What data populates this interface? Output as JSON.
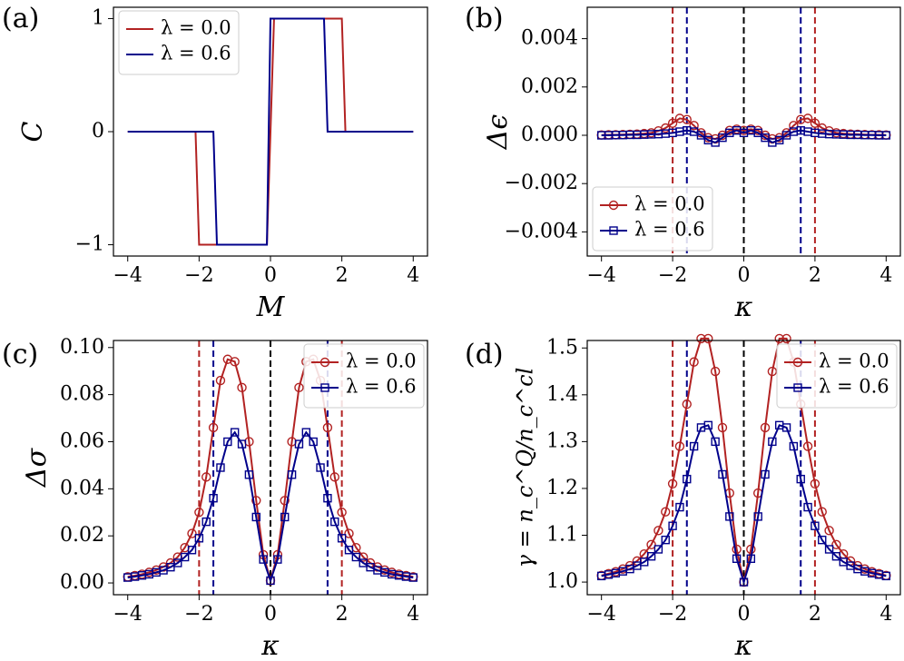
{
  "chart_data": [
    {
      "type": "line",
      "panel_label": "(a)",
      "xlabel": "M",
      "ylabel": "C",
      "xlim": [
        -4.4,
        4.4
      ],
      "ylim": [
        -1.1,
        1.1
      ],
      "xticks": [
        {
          "value": -4,
          "label": "−4"
        },
        {
          "value": -2,
          "label": "−2"
        },
        0,
        2,
        4
      ],
      "yticks": [
        {
          "value": -1,
          "label": "−1"
        },
        0,
        1
      ],
      "legend": "upper left",
      "series": [
        {
          "name": "λ = 0.0",
          "color": "#b22222",
          "x": [
            -4,
            -2.1,
            -2.0,
            -0.1,
            0.1,
            2.0,
            2.1,
            4
          ],
          "values": [
            0,
            0,
            -1,
            -1,
            1,
            1,
            0,
            0
          ]
        },
        {
          "name": "λ = 0.6",
          "color": "#00008b",
          "x": [
            -4,
            -1.6,
            -1.5,
            -0.1,
            0.0,
            1.5,
            1.6,
            4
          ],
          "values": [
            0,
            0,
            -1,
            -1,
            1,
            1,
            0,
            0
          ]
        }
      ]
    },
    {
      "type": "line",
      "panel_label": "(b)",
      "xlabel": "κ",
      "ylabel": "Δϵ",
      "xlim": [
        -4.4,
        4.4
      ],
      "ylim": [
        -0.005,
        0.0053
      ],
      "xticks": [
        {
          "value": -4,
          "label": "−4"
        },
        {
          "value": -2,
          "label": "−2"
        },
        0,
        2,
        4
      ],
      "yticks": [
        {
          "value": -0.004,
          "label": "−0.004"
        },
        {
          "value": -0.002,
          "label": "−0.002"
        },
        {
          "value": 0,
          "label": "0.000"
        },
        0.002,
        0.004
      ],
      "legend": "lower left",
      "vlines": [
        {
          "x": -2,
          "color": "#b22222"
        },
        {
          "x": -1.6,
          "color": "#00008b"
        },
        {
          "x": 0,
          "color": "#000000"
        },
        {
          "x": 1.6,
          "color": "#00008b"
        },
        {
          "x": 2,
          "color": "#b22222"
        }
      ],
      "x": [
        -4,
        -3.8,
        -3.6,
        -3.4,
        -3.2,
        -3,
        -2.8,
        -2.6,
        -2.4,
        -2.2,
        -2,
        -1.8,
        -1.6,
        -1.4,
        -1.2,
        -1,
        -0.8,
        -0.6,
        -0.4,
        -0.2,
        0,
        0.2,
        0.4,
        0.6,
        0.8,
        1,
        1.2,
        1.4,
        1.6,
        1.8,
        2,
        2.2,
        2.4,
        2.6,
        2.8,
        3,
        3.2,
        3.4,
        3.6,
        3.8,
        4
      ],
      "series": [
        {
          "name": "λ = 0.0",
          "color": "#b22222",
          "marker": "o",
          "values": [
            1e-05,
            2e-05,
            2e-05,
            3e-05,
            4e-05,
            5e-05,
            7e-05,
            0.0001,
            0.00018,
            0.0003,
            0.0005,
            0.0007,
            0.00065,
            0.0004,
            0.0001,
            -0.0001,
            -0.00015,
            0.0,
            0.0002,
            0.00025,
            0.0002,
            0.00025,
            0.0002,
            0.0,
            -0.00015,
            -0.0001,
            0.0001,
            0.0004,
            0.00065,
            0.0007,
            0.0005,
            0.0003,
            0.00018,
            0.0001,
            7e-05,
            5e-05,
            4e-05,
            3e-05,
            2e-05,
            2e-05,
            1e-05
          ]
        },
        {
          "name": "λ = 0.6",
          "color": "#00008b",
          "marker": "s",
          "values": [
            0.0,
            0.0,
            1e-05,
            1e-05,
            2e-05,
            2e-05,
            3e-05,
            4e-05,
            5e-05,
            7e-05,
            0.0001,
            0.00015,
            0.0002,
            0.00015,
            0.0,
            -0.0002,
            -0.0003,
            -0.0001,
            0.0001,
            0.0002,
            0.0001,
            0.0002,
            0.0001,
            -0.0001,
            -0.0003,
            -0.0002,
            0.0,
            0.00015,
            0.0002,
            0.00015,
            0.0001,
            7e-05,
            5e-05,
            4e-05,
            3e-05,
            2e-05,
            2e-05,
            1e-05,
            1e-05,
            0.0,
            0.0
          ]
        }
      ]
    },
    {
      "type": "line",
      "panel_label": "(c)",
      "xlabel": "κ",
      "ylabel": "Δσ",
      "xlim": [
        -4.4,
        4.4
      ],
      "ylim": [
        -0.005,
        0.103
      ],
      "xticks": [
        {
          "value": -4,
          "label": "−4"
        },
        {
          "value": -2,
          "label": "−2"
        },
        0,
        2,
        4
      ],
      "yticks": [
        {
          "value": 0,
          "label": "0.00"
        },
        0.02,
        0.04,
        0.06,
        0.08,
        {
          "value": 0.1,
          "label": "0.10"
        }
      ],
      "legend": "upper right",
      "vlines": [
        {
          "x": -2,
          "color": "#b22222"
        },
        {
          "x": -1.6,
          "color": "#00008b"
        },
        {
          "x": 0,
          "color": "#000000"
        },
        {
          "x": 1.6,
          "color": "#00008b"
        },
        {
          "x": 2,
          "color": "#b22222"
        }
      ],
      "x": [
        -4,
        -3.8,
        -3.6,
        -3.4,
        -3.2,
        -3,
        -2.8,
        -2.6,
        -2.4,
        -2.2,
        -2,
        -1.8,
        -1.6,
        -1.4,
        -1.2,
        -1,
        -0.8,
        -0.6,
        -0.4,
        -0.2,
        0,
        0.2,
        0.4,
        0.6,
        0.8,
        1,
        1.2,
        1.4,
        1.6,
        1.8,
        2,
        2.2,
        2.4,
        2.6,
        2.8,
        3,
        3.2,
        3.4,
        3.6,
        3.8,
        4
      ],
      "series": [
        {
          "name": "λ = 0.0",
          "color": "#b22222",
          "marker": "o",
          "values": [
            0.0026,
            0.0031,
            0.0037,
            0.0045,
            0.0055,
            0.0068,
            0.0085,
            0.011,
            0.015,
            0.021,
            0.03,
            0.045,
            0.066,
            0.086,
            0.095,
            0.094,
            0.083,
            0.06,
            0.035,
            0.012,
            0.001,
            0.012,
            0.035,
            0.06,
            0.083,
            0.094,
            0.095,
            0.086,
            0.066,
            0.045,
            0.03,
            0.021,
            0.015,
            0.011,
            0.0085,
            0.0068,
            0.0055,
            0.0045,
            0.0037,
            0.0031,
            0.0026
          ]
        },
        {
          "name": "λ = 0.6",
          "color": "#00008b",
          "marker": "s",
          "values": [
            0.0023,
            0.0027,
            0.0032,
            0.0037,
            0.0045,
            0.0054,
            0.0067,
            0.0085,
            0.011,
            0.014,
            0.019,
            0.026,
            0.036,
            0.049,
            0.06,
            0.064,
            0.059,
            0.046,
            0.028,
            0.01,
            0.001,
            0.01,
            0.028,
            0.046,
            0.059,
            0.064,
            0.06,
            0.049,
            0.036,
            0.026,
            0.019,
            0.014,
            0.011,
            0.0085,
            0.0067,
            0.0054,
            0.0045,
            0.0037,
            0.0032,
            0.0027,
            0.0023
          ]
        }
      ]
    },
    {
      "type": "line",
      "panel_label": "(d)",
      "xlabel": "κ",
      "ylabel": "γ = n_c^Q/n_c^cl",
      "xlim": [
        -4.4,
        4.4
      ],
      "ylim": [
        0.973,
        1.516
      ],
      "xticks": [
        {
          "value": -4,
          "label": "−4"
        },
        {
          "value": -2,
          "label": "−2"
        },
        0,
        2,
        4
      ],
      "yticks": [
        {
          "value": 1,
          "label": "1.0"
        },
        1.1,
        1.2,
        1.3,
        1.4,
        1.5
      ],
      "legend": "upper right",
      "vlines": [
        {
          "x": -2,
          "color": "#b22222"
        },
        {
          "x": -1.6,
          "color": "#00008b"
        },
        {
          "x": 0,
          "color": "#000000"
        },
        {
          "x": 1.6,
          "color": "#00008b"
        },
        {
          "x": 2,
          "color": "#b22222"
        }
      ],
      "x": [
        -4,
        -3.8,
        -3.6,
        -3.4,
        -3.2,
        -3,
        -2.8,
        -2.6,
        -2.4,
        -2.2,
        -2,
        -1.8,
        -1.6,
        -1.4,
        -1.2,
        -1,
        -0.8,
        -0.6,
        -0.4,
        -0.2,
        0,
        0.2,
        0.4,
        0.6,
        0.8,
        1,
        1.2,
        1.4,
        1.6,
        1.8,
        2,
        2.2,
        2.4,
        2.6,
        2.8,
        3,
        3.2,
        3.4,
        3.6,
        3.8,
        4
      ],
      "series": [
        {
          "name": "λ = 0.0",
          "color": "#b22222",
          "marker": "o",
          "values": [
            1.014,
            1.018,
            1.022,
            1.028,
            1.035,
            1.045,
            1.06,
            1.08,
            1.11,
            1.15,
            1.21,
            1.29,
            1.38,
            1.47,
            1.52,
            1.52,
            1.45,
            1.33,
            1.19,
            1.07,
            1.0,
            1.07,
            1.19,
            1.33,
            1.45,
            1.52,
            1.52,
            1.47,
            1.38,
            1.29,
            1.21,
            1.15,
            1.11,
            1.08,
            1.06,
            1.045,
            1.035,
            1.028,
            1.022,
            1.018,
            1.014
          ]
        },
        {
          "name": "λ = 0.6",
          "color": "#00008b",
          "marker": "s",
          "values": [
            1.013,
            1.016,
            1.019,
            1.023,
            1.028,
            1.035,
            1.043,
            1.055,
            1.07,
            1.09,
            1.12,
            1.16,
            1.22,
            1.29,
            1.33,
            1.335,
            1.3,
            1.23,
            1.14,
            1.05,
            1.0,
            1.05,
            1.14,
            1.23,
            1.3,
            1.335,
            1.33,
            1.29,
            1.22,
            1.16,
            1.12,
            1.09,
            1.07,
            1.055,
            1.043,
            1.035,
            1.028,
            1.023,
            1.019,
            1.016,
            1.013
          ]
        }
      ]
    }
  ]
}
